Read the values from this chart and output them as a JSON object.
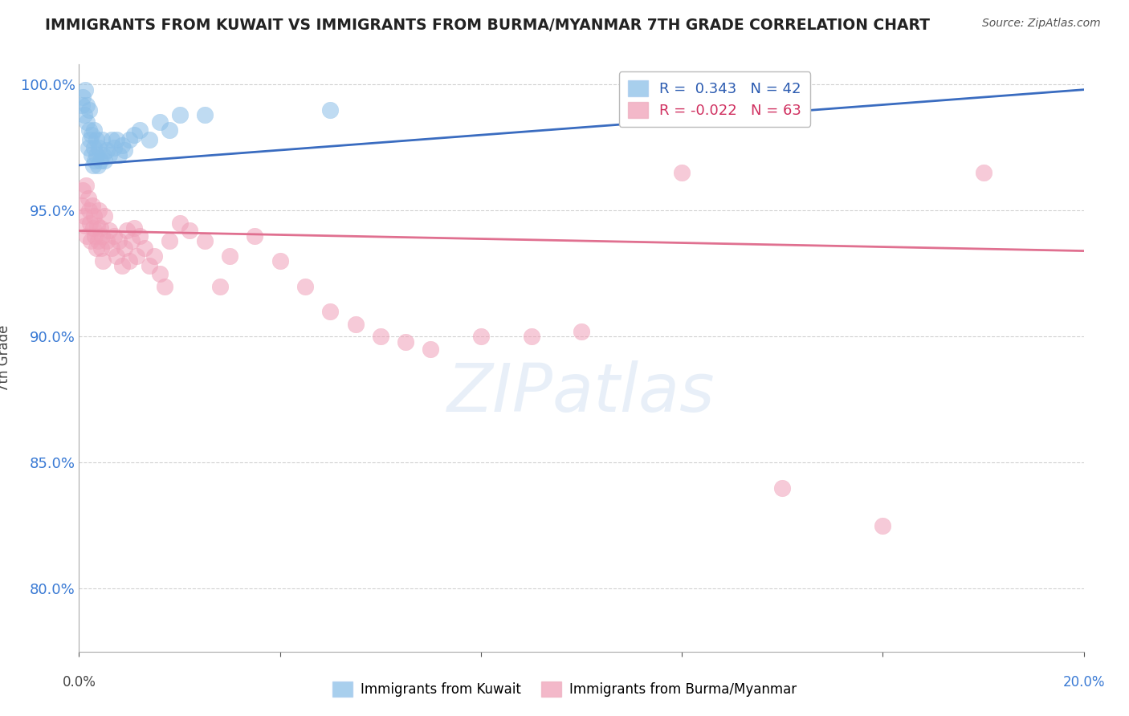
{
  "title": "IMMIGRANTS FROM KUWAIT VS IMMIGRANTS FROM BURMA/MYANMAR 7TH GRADE CORRELATION CHART",
  "source": "Source: ZipAtlas.com",
  "ylabel": "7th Grade",
  "xlim": [
    0.0,
    0.2
  ],
  "ylim": [
    0.775,
    1.008
  ],
  "yticks": [
    0.8,
    0.85,
    0.9,
    0.95,
    1.0
  ],
  "ytick_labels": [
    "80.0%",
    "85.0%",
    "90.0%",
    "95.0%",
    "100.0%"
  ],
  "legend_kuwait": "Immigrants from Kuwait",
  "legend_burma": "Immigrants from Burma/Myanmar",
  "R_kuwait": 0.343,
  "N_kuwait": 42,
  "R_burma": -0.022,
  "N_burma": 63,
  "blue_color": "#8bbfe8",
  "pink_color": "#f0a0b8",
  "blue_line_color": "#3a6cc0",
  "pink_line_color": "#e07090",
  "blue_line_x0": 0.0,
  "blue_line_y0": 0.968,
  "blue_line_x1": 0.2,
  "blue_line_y1": 0.998,
  "pink_line_x0": 0.0,
  "pink_line_y0": 0.942,
  "pink_line_x1": 0.2,
  "pink_line_y1": 0.934,
  "blue_points_x": [
    0.0005,
    0.0008,
    0.001,
    0.0012,
    0.0015,
    0.0015,
    0.0018,
    0.002,
    0.002,
    0.0022,
    0.0025,
    0.0025,
    0.0028,
    0.003,
    0.003,
    0.0032,
    0.0035,
    0.0035,
    0.0038,
    0.004,
    0.0042,
    0.0045,
    0.0048,
    0.005,
    0.0055,
    0.006,
    0.0065,
    0.007,
    0.0075,
    0.008,
    0.0085,
    0.009,
    0.01,
    0.011,
    0.012,
    0.014,
    0.016,
    0.018,
    0.02,
    0.025,
    0.05,
    0.12
  ],
  "blue_points_y": [
    0.992,
    0.995,
    0.988,
    0.998,
    0.985,
    0.992,
    0.975,
    0.982,
    0.99,
    0.978,
    0.972,
    0.98,
    0.968,
    0.975,
    0.982,
    0.97,
    0.972,
    0.978,
    0.968,
    0.975,
    0.97,
    0.978,
    0.972,
    0.97,
    0.974,
    0.972,
    0.978,
    0.975,
    0.978,
    0.972,
    0.976,
    0.974,
    0.978,
    0.98,
    0.982,
    0.978,
    0.985,
    0.982,
    0.988,
    0.988,
    0.99,
    1.0
  ],
  "pink_points_x": [
    0.0005,
    0.0008,
    0.001,
    0.0012,
    0.0014,
    0.0016,
    0.0018,
    0.002,
    0.0022,
    0.0024,
    0.0026,
    0.0028,
    0.003,
    0.0032,
    0.0034,
    0.0036,
    0.0038,
    0.004,
    0.0042,
    0.0044,
    0.0046,
    0.0048,
    0.005,
    0.0055,
    0.006,
    0.0065,
    0.007,
    0.0075,
    0.008,
    0.0085,
    0.009,
    0.0095,
    0.01,
    0.0105,
    0.011,
    0.0115,
    0.012,
    0.013,
    0.014,
    0.015,
    0.016,
    0.017,
    0.018,
    0.02,
    0.022,
    0.025,
    0.028,
    0.03,
    0.035,
    0.04,
    0.045,
    0.05,
    0.055,
    0.06,
    0.065,
    0.07,
    0.08,
    0.09,
    0.1,
    0.12,
    0.14,
    0.16,
    0.18
  ],
  "pink_points_y": [
    0.952,
    0.958,
    0.948,
    0.944,
    0.96,
    0.94,
    0.955,
    0.95,
    0.945,
    0.938,
    0.952,
    0.943,
    0.948,
    0.94,
    0.935,
    0.944,
    0.938,
    0.95,
    0.943,
    0.935,
    0.94,
    0.93,
    0.948,
    0.938,
    0.942,
    0.935,
    0.94,
    0.932,
    0.938,
    0.928,
    0.935,
    0.942,
    0.93,
    0.938,
    0.943,
    0.932,
    0.94,
    0.935,
    0.928,
    0.932,
    0.925,
    0.92,
    0.938,
    0.945,
    0.942,
    0.938,
    0.92,
    0.932,
    0.94,
    0.93,
    0.92,
    0.91,
    0.905,
    0.9,
    0.898,
    0.895,
    0.9,
    0.9,
    0.902,
    0.965,
    0.84,
    0.825,
    0.965
  ]
}
